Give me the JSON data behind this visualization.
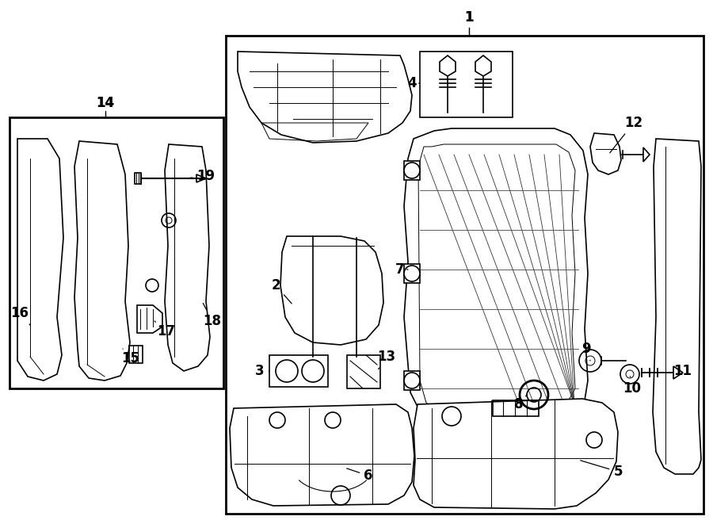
{
  "bg_color": "#ffffff",
  "line_color": "#000000",
  "fig_width": 9.0,
  "fig_height": 6.61,
  "dpi": 100,
  "font_size_labels": 12
}
